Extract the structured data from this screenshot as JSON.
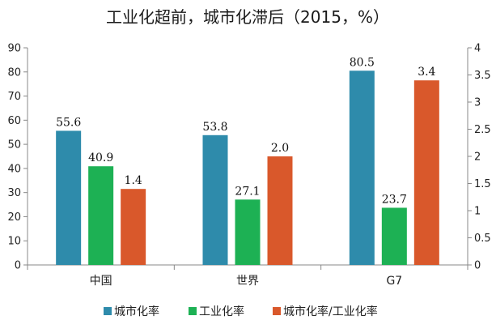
{
  "chart_data": {
    "type": "bar",
    "title": "工业化超前，城市化滞后（2015，%）",
    "categories": [
      "中国",
      "世界",
      "G7"
    ],
    "series": [
      {
        "name": "城市化率",
        "axis": "left",
        "values": [
          55.6,
          53.8,
          80.5
        ],
        "labels": [
          "55.6",
          "53.8",
          "80.5"
        ],
        "color": "#2e8bab"
      },
      {
        "name": "工业化率",
        "axis": "left",
        "values": [
          40.9,
          27.1,
          23.7
        ],
        "labels": [
          "40.9",
          "27.1",
          "23.7"
        ],
        "color": "#1db154"
      },
      {
        "name": "城市化率/工业化率",
        "axis": "right",
        "values": [
          1.4,
          2.0,
          3.4
        ],
        "labels": [
          "1.4",
          "2.0",
          "3.4"
        ],
        "color": "#d9582b"
      }
    ],
    "ylim_left": [
      0,
      90
    ],
    "yticks_left": [
      "0",
      "10",
      "20",
      "30",
      "40",
      "50",
      "60",
      "70",
      "80",
      "90"
    ],
    "ylim_right": [
      0,
      4
    ],
    "yticks_right": [
      "0",
      "0.5",
      "1",
      "1.5",
      "2",
      "2.5",
      "3",
      "3.5",
      "4"
    ],
    "grid": false,
    "legend_position": "bottom"
  }
}
